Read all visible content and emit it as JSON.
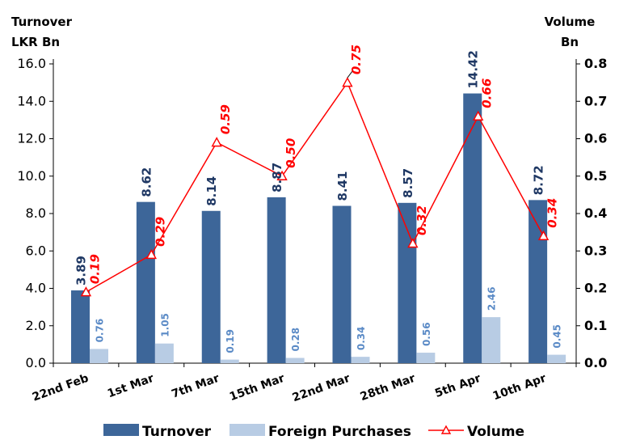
{
  "chart_data": {
    "type": "bar",
    "left_axis_title": [
      "Turnover",
      "LKR  Bn"
    ],
    "right_axis_title": [
      "Volume",
      "Bn"
    ],
    "categories": [
      "22nd Feb",
      "1st Mar",
      "7th Mar",
      "15th Mar",
      "22nd Mar",
      "28th Mar",
      "5th Apr",
      "10th Apr"
    ],
    "y_left": {
      "min": 0,
      "max": 16,
      "step": 2,
      "tick_labels": [
        "0.0",
        "2.0",
        "4.0",
        "6.0",
        "8.0",
        "10.0",
        "12.0",
        "14.0",
        "16.0"
      ]
    },
    "y_right": {
      "min": 0,
      "max": 0.8,
      "step": 0.1,
      "tick_labels": [
        "0.0",
        "0.1",
        "0.2",
        "0.3",
        "0.4",
        "0.5",
        "0.6",
        "0.7",
        "0.8"
      ]
    },
    "grid": false,
    "legend_position": "bottom",
    "series": [
      {
        "name": "Turnover",
        "type": "bar",
        "axis": "left",
        "color": "#3d6699",
        "values": [
          3.89,
          8.62,
          8.14,
          8.87,
          8.41,
          8.57,
          14.42,
          8.72
        ],
        "labels": [
          "3.89",
          "8.62",
          "8.14",
          "8.87",
          "8.41",
          "8.57",
          "14.42",
          "8.72"
        ],
        "label_color": "#1f3864"
      },
      {
        "name": "Foreign Purchases",
        "type": "bar",
        "axis": "left",
        "color": "#b8cce4",
        "values": [
          0.76,
          1.05,
          0.19,
          0.28,
          0.34,
          0.56,
          2.46,
          0.45
        ],
        "labels": [
          "0.76",
          "1.05",
          "0.19",
          "0.28",
          "0.34",
          "0.56",
          "2.46",
          "0.45"
        ],
        "label_color": "#5a8ac6"
      },
      {
        "name": "Volume",
        "type": "line",
        "axis": "right",
        "color": "#ff0000",
        "values": [
          0.19,
          0.29,
          0.59,
          0.5,
          0.75,
          0.32,
          0.66,
          0.34
        ],
        "labels": [
          "0.19",
          "0.29",
          "0.59",
          "0.50",
          "0.75",
          "0.32",
          "0.66",
          "0.34"
        ]
      }
    ]
  }
}
